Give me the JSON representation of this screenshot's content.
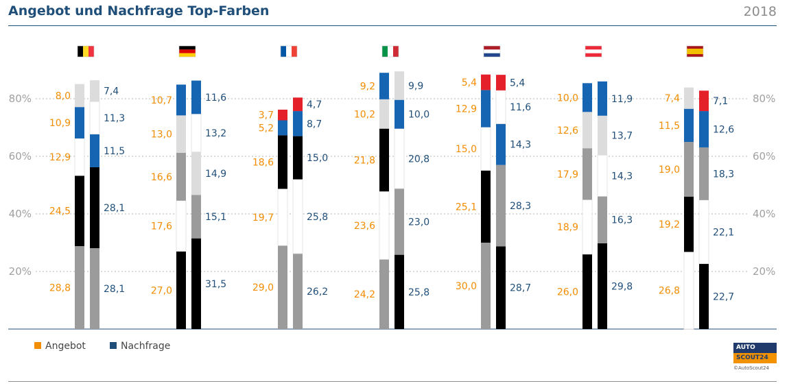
{
  "header": {
    "title": "Angebot und Nachfrage Top-Farben",
    "year": "2018"
  },
  "legend": [
    {
      "label": "Angebot",
      "color": "#f28c00"
    },
    {
      "label": "Nachfrage",
      "color": "#1f4e79"
    }
  ],
  "logo": {
    "line1": "AUTO",
    "line2": "SCOUT24",
    "credit": "©AutoScout24"
  },
  "chart_data": {
    "type": "bar",
    "stacked": true,
    "categories": [
      "Belgien",
      "Deutschland",
      "Frankreich",
      "Italien",
      "Niederlande",
      "Österreich",
      "Spanien"
    ],
    "series_names": [
      "Angebot",
      "Nachfrage"
    ],
    "yticks": [
      "80%",
      "60%",
      "40%",
      "20%"
    ],
    "ytick_values": [
      80,
      60,
      40,
      20
    ],
    "ylim": [
      0,
      100
    ],
    "grid": true,
    "colors": {
      "grau": "#9b9b9b",
      "schwarz": "#000000",
      "weiss": "#ffffff",
      "silber": "#dcdcdc",
      "blau": "#1565b3",
      "rot": "#e4212b"
    },
    "label_colors": {
      "Angebot": "#f28c00",
      "Nachfrage": "#1f4e79"
    },
    "flags": {
      "Belgien": {
        "type": "vertical",
        "colors": [
          "#000000",
          "#fdda24",
          "#ef3340"
        ]
      },
      "Deutschland": {
        "type": "horizontal",
        "colors": [
          "#000000",
          "#dd0000",
          "#ffce00"
        ]
      },
      "Frankreich": {
        "type": "vertical",
        "colors": [
          "#0055a4",
          "#ffffff",
          "#ef4135"
        ]
      },
      "Italien": {
        "type": "vertical",
        "colors": [
          "#009246",
          "#ffffff",
          "#ce2b37"
        ]
      },
      "Niederlande": {
        "type": "horizontal",
        "colors": [
          "#ae1c28",
          "#ffffff",
          "#21468b"
        ]
      },
      "Österreich": {
        "type": "horizontal",
        "colors": [
          "#ed2939",
          "#ffffff",
          "#ed2939"
        ]
      },
      "Spanien": {
        "type": "spain",
        "colors": [
          "#aa151b",
          "#f1bf00",
          "#aa151b"
        ]
      }
    },
    "groups": [
      {
        "country": "Belgien",
        "angebot": [
          {
            "color": "grau",
            "value": 28.8,
            "label": "28,8"
          },
          {
            "color": "schwarz",
            "value": 24.5,
            "label": "24,5"
          },
          {
            "color": "weiss",
            "value": 12.9,
            "label": "12,9"
          },
          {
            "color": "blau",
            "value": 10.9,
            "label": "10,9"
          },
          {
            "color": "silber",
            "value": 8.0,
            "label": "8,0"
          }
        ],
        "nachfrage": [
          {
            "color": "grau",
            "value": 28.1,
            "label": "28,1"
          },
          {
            "color": "schwarz",
            "value": 28.1,
            "label": "28,1"
          },
          {
            "color": "blau",
            "value": 11.5,
            "label": "11,5"
          },
          {
            "color": "weiss",
            "value": 11.3,
            "label": "11,3"
          },
          {
            "color": "silber",
            "value": 7.4,
            "label": "7,4"
          }
        ]
      },
      {
        "country": "Deutschland",
        "angebot": [
          {
            "color": "schwarz",
            "value": 27.0,
            "label": "27,0"
          },
          {
            "color": "weiss",
            "value": 17.6,
            "label": "17,6"
          },
          {
            "color": "grau",
            "value": 16.6,
            "label": "16,6"
          },
          {
            "color": "silber",
            "value": 13.0,
            "label": "13,0"
          },
          {
            "color": "blau",
            "value": 10.7,
            "label": "10,7"
          }
        ],
        "nachfrage": [
          {
            "color": "schwarz",
            "value": 31.5,
            "label": "31,5"
          },
          {
            "color": "grau",
            "value": 15.1,
            "label": "15,1"
          },
          {
            "color": "silber",
            "value": 14.9,
            "label": "14,9"
          },
          {
            "color": "weiss",
            "value": 13.2,
            "label": "13,2"
          },
          {
            "color": "blau",
            "value": 11.6,
            "label": "11,6"
          }
        ]
      },
      {
        "country": "Frankreich",
        "angebot": [
          {
            "color": "grau",
            "value": 29.0,
            "label": "29,0"
          },
          {
            "color": "weiss",
            "value": 19.7,
            "label": "19,7"
          },
          {
            "color": "schwarz",
            "value": 18.6,
            "label": "18,6"
          },
          {
            "color": "blau",
            "value": 5.2,
            "label": "5,2"
          },
          {
            "color": "rot",
            "value": 3.7,
            "label": "3,7"
          }
        ],
        "nachfrage": [
          {
            "color": "grau",
            "value": 26.2,
            "label": "26,2"
          },
          {
            "color": "weiss",
            "value": 25.8,
            "label": "25,8"
          },
          {
            "color": "schwarz",
            "value": 15.0,
            "label": "15,0"
          },
          {
            "color": "blau",
            "value": 8.7,
            "label": "8,7"
          },
          {
            "color": "rot",
            "value": 4.7,
            "label": "4,7"
          }
        ]
      },
      {
        "country": "Italien",
        "angebot": [
          {
            "color": "grau",
            "value": 24.2,
            "label": "24,2"
          },
          {
            "color": "weiss",
            "value": 23.6,
            "label": "23,6"
          },
          {
            "color": "schwarz",
            "value": 21.8,
            "label": "21,8"
          },
          {
            "color": "silber",
            "value": 10.2,
            "label": "10,2"
          },
          {
            "color": "blau",
            "value": 9.2,
            "label": "9,2"
          }
        ],
        "nachfrage": [
          {
            "color": "schwarz",
            "value": 25.8,
            "label": "25,8"
          },
          {
            "color": "grau",
            "value": 23.0,
            "label": "23,0"
          },
          {
            "color": "weiss",
            "value": 20.8,
            "label": "20,8"
          },
          {
            "color": "blau",
            "value": 10.0,
            "label": "10,0"
          },
          {
            "color": "silber",
            "value": 9.9,
            "label": "9,9"
          }
        ]
      },
      {
        "country": "Niederlande",
        "angebot": [
          {
            "color": "grau",
            "value": 30.0,
            "label": "30,0"
          },
          {
            "color": "schwarz",
            "value": 25.1,
            "label": "25,1"
          },
          {
            "color": "weiss",
            "value": 15.0,
            "label": "15,0"
          },
          {
            "color": "blau",
            "value": 12.9,
            "label": "12,9"
          },
          {
            "color": "rot",
            "value": 5.4,
            "label": "5,4"
          }
        ],
        "nachfrage": [
          {
            "color": "schwarz",
            "value": 28.7,
            "label": "28,7"
          },
          {
            "color": "grau",
            "value": 28.3,
            "label": "28,3"
          },
          {
            "color": "blau",
            "value": 14.3,
            "label": "14,3"
          },
          {
            "color": "weiss",
            "value": 11.6,
            "label": "11,6"
          },
          {
            "color": "rot",
            "value": 5.4,
            "label": "5,4"
          }
        ]
      },
      {
        "country": "Österreich",
        "angebot": [
          {
            "color": "schwarz",
            "value": 26.0,
            "label": "26,0"
          },
          {
            "color": "weiss",
            "value": 18.9,
            "label": "18,9"
          },
          {
            "color": "grau",
            "value": 17.9,
            "label": "17,9"
          },
          {
            "color": "silber",
            "value": 12.6,
            "label": "12,6"
          },
          {
            "color": "blau",
            "value": 10.0,
            "label": "10,0"
          }
        ],
        "nachfrage": [
          {
            "color": "schwarz",
            "value": 29.8,
            "label": "29,8"
          },
          {
            "color": "grau",
            "value": 16.3,
            "label": "16,3"
          },
          {
            "color": "weiss",
            "value": 14.3,
            "label": "14,3"
          },
          {
            "color": "silber",
            "value": 13.7,
            "label": "13,7"
          },
          {
            "color": "blau",
            "value": 11.9,
            "label": "11,9"
          }
        ]
      },
      {
        "country": "Spanien",
        "angebot": [
          {
            "color": "weiss",
            "value": 26.8,
            "label": "26,8"
          },
          {
            "color": "schwarz",
            "value": 19.2,
            "label": "19,2"
          },
          {
            "color": "grau",
            "value": 19.0,
            "label": "19,0"
          },
          {
            "color": "blau",
            "value": 11.5,
            "label": "11,5"
          },
          {
            "color": "silber",
            "value": 7.4,
            "label": "7,4"
          }
        ],
        "nachfrage": [
          {
            "color": "schwarz",
            "value": 22.7,
            "label": "22,7"
          },
          {
            "color": "weiss",
            "value": 22.1,
            "label": "22,1"
          },
          {
            "color": "grau",
            "value": 18.3,
            "label": "18,3"
          },
          {
            "color": "blau",
            "value": 12.6,
            "label": "12,6"
          },
          {
            "color": "rot",
            "value": 7.1,
            "label": "7,1"
          }
        ]
      }
    ]
  }
}
